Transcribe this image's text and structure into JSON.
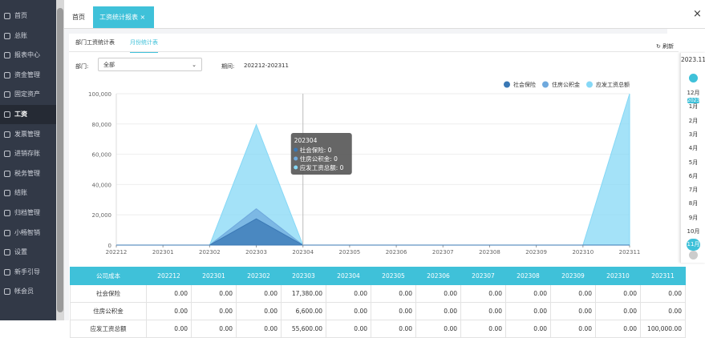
{
  "sidebar": {
    "items": [
      "首页",
      "总账",
      "报表中心",
      "资金管理",
      "固定资产",
      "工资",
      "发票管理",
      "进销存账",
      "税务管理",
      "结账",
      "归档管理",
      "小畅智销",
      "设置",
      "新手引导",
      "帐会员"
    ],
    "active": 5
  },
  "tabs": {
    "items": [
      "首页",
      "工资统计报表"
    ],
    "close": "×",
    "window_close": "×"
  },
  "subtabs": {
    "items": [
      "部门工资统计表",
      "月份统计表"
    ],
    "refresh": "刷新"
  },
  "filter": {
    "dept_label": "部门:",
    "dept_value": "全部",
    "period_label": "期间:",
    "period_value": "202212-202311"
  },
  "calendar": {
    "current": "2023.11",
    "year_badge": "2023",
    "months": [
      "12月",
      "1月",
      "2月",
      "3月",
      "4月",
      "5月",
      "6月",
      "7月",
      "8月",
      "9月",
      "10月",
      "11月"
    ]
  },
  "chart_data": {
    "type": "stacked-area",
    "x": [
      "202212",
      "202301",
      "202302",
      "202303",
      "202304",
      "202305",
      "202306",
      "202307",
      "202308",
      "202309",
      "202310",
      "202311"
    ],
    "series": [
      {
        "name": "社会保险",
        "color": "#3a78b5",
        "values": [
          0,
          0,
          0,
          17380,
          0,
          0,
          0,
          0,
          0,
          0,
          0,
          0
        ]
      },
      {
        "name": "住房公积金",
        "color": "#6fa9dd",
        "values": [
          0,
          0,
          0,
          6600,
          0,
          0,
          0,
          0,
          0,
          0,
          0,
          0
        ]
      },
      {
        "name": "应发工资总额",
        "color": "#86d8f6",
        "values": [
          0,
          0,
          0,
          55600,
          0,
          0,
          0,
          0,
          0,
          0,
          0,
          100000
        ]
      }
    ],
    "ylim": [
      0,
      100000
    ],
    "yticks": [
      0,
      {
        "value": 20000,
        "label": "20,000"
      },
      {
        "value": 40000,
        "label": "40,000"
      },
      {
        "value": 60000,
        "label": "60,000"
      },
      {
        "value": 80000,
        "label": "80,000"
      },
      {
        "value": 100000,
        "label": "100,000"
      }
    ],
    "grid": true,
    "legend": "top-right",
    "tooltip": {
      "index": 4,
      "title": "202304",
      "items": [
        "社会保险: 0",
        "住房公积金: 0",
        "应发工资总额: 0"
      ]
    }
  },
  "table": {
    "headers": [
      "公司成本",
      "202212",
      "202301",
      "202302",
      "202303",
      "202304",
      "202305",
      "202306",
      "202307",
      "202308",
      "202309",
      "202310",
      "202311"
    ],
    "rows": [
      [
        "社会保险",
        "0.00",
        "0.00",
        "0.00",
        "17,380.00",
        "0.00",
        "0.00",
        "0.00",
        "0.00",
        "0.00",
        "0.00",
        "0.00",
        "0.00"
      ],
      [
        "住房公积金",
        "0.00",
        "0.00",
        "0.00",
        "6,600.00",
        "0.00",
        "0.00",
        "0.00",
        "0.00",
        "0.00",
        "0.00",
        "0.00",
        "0.00"
      ],
      [
        "应发工资总额",
        "0.00",
        "0.00",
        "0.00",
        "55,600.00",
        "0.00",
        "0.00",
        "0.00",
        "0.00",
        "0.00",
        "0.00",
        "0.00",
        "100,000.00"
      ]
    ]
  }
}
